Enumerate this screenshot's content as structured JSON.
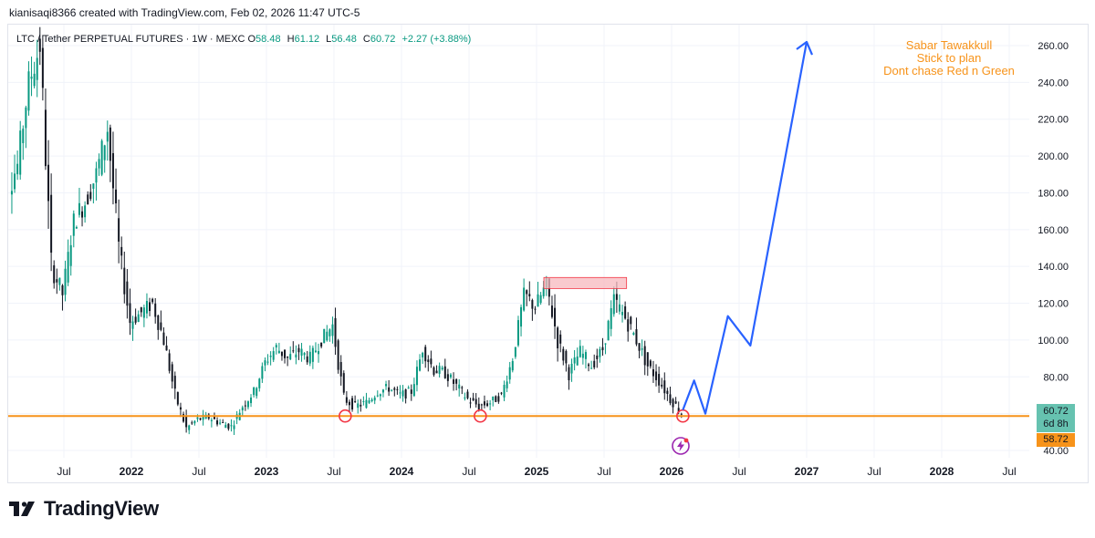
{
  "header": {
    "attribution": "kianisaqi8366 created with TradingView.com, Feb 02, 2026 11:47 UTC-5"
  },
  "legend": {
    "symbol": "LTC / Tether PERPETUAL FUTURES · 1W · MEXC",
    "open_label": "O",
    "open": "58.48",
    "high_label": "H",
    "high": "61.12",
    "low_label": "L",
    "low": "56.48",
    "close_label": "C",
    "close": "60.72",
    "change": "+2.27 (+3.88%)"
  },
  "note": {
    "line1": "Sabar Tawakkull",
    "line2": "Stick to plan",
    "line3": "Dont chase Red n Green"
  },
  "price_tags": {
    "last_price": "60.72",
    "countdown": "6d 8h",
    "line_price": "58.72"
  },
  "brand": {
    "name": "TradingView"
  },
  "colors": {
    "up": "#089981",
    "down": "#131722",
    "support": "#f7931a",
    "projection": "#2962ff",
    "zone_fill": "#f7b8bd",
    "zone_stroke": "#f23645",
    "marker": "#f23645",
    "flash": "#9c27b0"
  },
  "chart_data": {
    "type": "line",
    "title": "",
    "y_axis": {
      "range": [
        36,
        270
      ],
      "ticks": [
        "40.00",
        "60.00",
        "80.00",
        "100.00",
        "120.00",
        "140.00",
        "160.00",
        "180.00",
        "200.00",
        "220.00",
        "240.00",
        "260.00"
      ],
      "tick_values": [
        40,
        60,
        80,
        100,
        120,
        140,
        160,
        180,
        200,
        220,
        240,
        260
      ]
    },
    "x_axis": {
      "range": [
        "2021-01",
        "2028-10"
      ],
      "ticks": [
        "Jul",
        "2022",
        "Jul",
        "2023",
        "Jul",
        "2024",
        "Jul",
        "2025",
        "Jul",
        "2026",
        "Jul",
        "2027",
        "Jul",
        "2028",
        "Jul"
      ],
      "tick_dates": [
        "2021-07",
        "2022-01",
        "2022-07",
        "2023-01",
        "2023-07",
        "2024-01",
        "2024-07",
        "2025-01",
        "2025-07",
        "2026-01",
        "2026-07",
        "2027-01",
        "2027-07",
        "2028-01",
        "2028-07"
      ]
    },
    "price_path": [
      [
        "2021-01",
        150
      ],
      [
        "2021-02",
        180
      ],
      [
        "2021-03",
        195
      ],
      [
        "2021-04",
        240
      ],
      [
        "2021-05",
        260
      ],
      [
        "2021-06",
        140
      ],
      [
        "2021-07",
        125
      ],
      [
        "2021-08",
        165
      ],
      [
        "2021-09",
        175
      ],
      [
        "2021-10",
        190
      ],
      [
        "2021-11",
        215
      ],
      [
        "2021-12",
        150
      ],
      [
        "2022-01",
        110
      ],
      [
        "2022-02",
        115
      ],
      [
        "2022-03",
        120
      ],
      [
        "2022-04",
        100
      ],
      [
        "2022-05",
        70
      ],
      [
        "2022-06",
        52
      ],
      [
        "2022-07",
        57
      ],
      [
        "2022-08",
        58
      ],
      [
        "2022-09",
        55
      ],
      [
        "2022-10",
        53
      ],
      [
        "2022-11",
        64
      ],
      [
        "2022-12",
        72
      ],
      [
        "2023-01",
        88
      ],
      [
        "2023-02",
        96
      ],
      [
        "2023-03",
        90
      ],
      [
        "2023-04",
        94
      ],
      [
        "2023-05",
        90
      ],
      [
        "2023-06",
        100
      ],
      [
        "2023-07",
        108
      ],
      [
        "2023-08",
        68
      ],
      [
        "2023-09",
        64
      ],
      [
        "2023-10",
        66
      ],
      [
        "2023-11",
        72
      ],
      [
        "2023-12",
        74
      ],
      [
        "2024-01",
        70
      ],
      [
        "2024-02",
        72
      ],
      [
        "2024-03",
        95
      ],
      [
        "2024-04",
        84
      ],
      [
        "2024-05",
        82
      ],
      [
        "2024-06",
        75
      ],
      [
        "2024-07",
        68
      ],
      [
        "2024-08",
        64
      ],
      [
        "2024-09",
        66
      ],
      [
        "2024-10",
        70
      ],
      [
        "2024-11",
        90
      ],
      [
        "2024-12",
        125
      ],
      [
        "2025-01",
        118
      ],
      [
        "2025-02",
        130
      ],
      [
        "2025-03",
        100
      ],
      [
        "2025-04",
        82
      ],
      [
        "2025-05",
        94
      ],
      [
        "2025-06",
        86
      ],
      [
        "2025-07",
        95
      ],
      [
        "2025-08",
        122
      ],
      [
        "2025-09",
        112
      ],
      [
        "2025-10",
        100
      ],
      [
        "2025-11",
        86
      ],
      [
        "2025-12",
        78
      ],
      [
        "2026-01",
        68
      ],
      [
        "2026-02",
        60.72
      ]
    ],
    "support_line": 58.72,
    "support_touches": [
      [
        "2023-08",
        58.72
      ],
      [
        "2024-08",
        58.72
      ],
      [
        "2026-02",
        58.72
      ]
    ],
    "resistance_zone": {
      "from": "2025-01",
      "to": "2025-09",
      "low": 128,
      "high": 134
    },
    "projection_path": [
      [
        "2026-02",
        62
      ],
      [
        "2026-03",
        78
      ],
      [
        "2026-04",
        60
      ],
      [
        "2026-06",
        113
      ],
      [
        "2026-08",
        97
      ],
      [
        "2027-01",
        262
      ],
      [
        "2027-01",
        255
      ]
    ]
  }
}
